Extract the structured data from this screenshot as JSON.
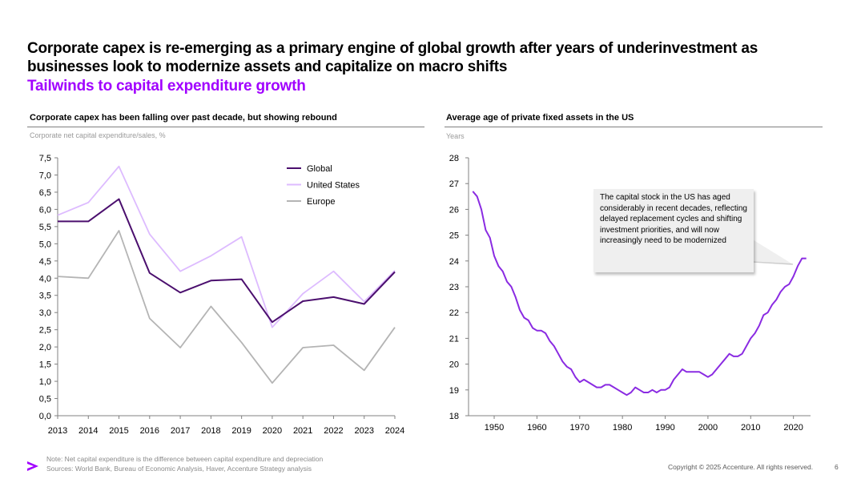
{
  "header": {
    "title": "Corporate capex is re-emerging as a primary engine of global growth after years of underinvestment as businesses look to modernize assets and capitalize on macro shifts",
    "subtitle": "Tailwinds to capital expenditure growth"
  },
  "colors": {
    "accent": "#A100FF",
    "global": "#4B0F6E",
    "us": "#DDBBFF",
    "europe": "#B4B4B4",
    "age_line": "#8A2BE2"
  },
  "chart_data": [
    {
      "type": "line",
      "title": "Corporate capex has been falling over past decade, but showing rebound",
      "ylabel": "Corporate net capital expenditure/sales, %",
      "xlabel": "",
      "categories": [
        "2013",
        "2014",
        "2015",
        "2016",
        "2017",
        "2018",
        "2019",
        "2020",
        "2021",
        "2022",
        "2023",
        "2024"
      ],
      "series": [
        {
          "name": "Global",
          "values": [
            5.65,
            5.65,
            6.3,
            4.15,
            3.58,
            3.93,
            3.97,
            2.72,
            3.33,
            3.45,
            3.25,
            4.18
          ]
        },
        {
          "name": "United States",
          "values": [
            5.83,
            6.2,
            7.25,
            5.28,
            4.2,
            4.65,
            5.2,
            2.57,
            3.55,
            4.2,
            3.32,
            4.22
          ]
        },
        {
          "name": "Europe",
          "values": [
            4.05,
            4.0,
            5.38,
            2.83,
            1.98,
            3.18,
            2.13,
            0.95,
            1.98,
            2.05,
            1.32,
            2.57
          ]
        }
      ],
      "ylim": [
        0,
        7.5
      ],
      "yticks": [
        "0,0",
        "0,5",
        "1,0",
        "1,5",
        "2,0",
        "2,5",
        "3,0",
        "3,5",
        "4,0",
        "4,5",
        "5,0",
        "5,5",
        "6,0",
        "6,5",
        "7,0",
        "7,5"
      ],
      "legend": "top-right"
    },
    {
      "type": "line",
      "title": "Average age of private fixed assets in the US",
      "ylabel": "Years",
      "xlabel": "",
      "xlim": [
        1944,
        2024
      ],
      "ylim": [
        18,
        28
      ],
      "xticks": [
        "1950",
        "1960",
        "1970",
        "1980",
        "1990",
        "2000",
        "2010",
        "2020"
      ],
      "yticks": [
        "18",
        "19",
        "20",
        "21",
        "22",
        "23",
        "24",
        "25",
        "26",
        "27",
        "28"
      ],
      "series": [
        {
          "name": "Average age",
          "x": [
            1945,
            1946,
            1947,
            1948,
            1949,
            1950,
            1951,
            1952,
            1953,
            1954,
            1955,
            1956,
            1957,
            1958,
            1959,
            1960,
            1961,
            1962,
            1963,
            1964,
            1965,
            1966,
            1967,
            1968,
            1969,
            1970,
            1971,
            1972,
            1973,
            1974,
            1975,
            1976,
            1977,
            1978,
            1979,
            1980,
            1981,
            1982,
            1983,
            1984,
            1985,
            1986,
            1987,
            1988,
            1989,
            1990,
            1991,
            1992,
            1993,
            1994,
            1995,
            1996,
            1997,
            1998,
            1999,
            2000,
            2001,
            2002,
            2003,
            2004,
            2005,
            2006,
            2007,
            2008,
            2009,
            2010,
            2011,
            2012,
            2013,
            2014,
            2015,
            2016,
            2017,
            2018,
            2019,
            2020,
            2021,
            2022,
            2023
          ],
          "y": [
            26.7,
            26.5,
            26.0,
            25.2,
            24.9,
            24.2,
            23.8,
            23.6,
            23.2,
            23.0,
            22.6,
            22.1,
            21.8,
            21.7,
            21.4,
            21.3,
            21.3,
            21.2,
            20.9,
            20.7,
            20.4,
            20.1,
            19.9,
            19.8,
            19.5,
            19.3,
            19.4,
            19.3,
            19.2,
            19.1,
            19.1,
            19.2,
            19.2,
            19.1,
            19.0,
            18.9,
            18.8,
            18.9,
            19.1,
            19.0,
            18.9,
            18.9,
            19.0,
            18.9,
            19.0,
            19.0,
            19.1,
            19.4,
            19.6,
            19.8,
            19.7,
            19.7,
            19.7,
            19.7,
            19.6,
            19.5,
            19.6,
            19.8,
            20.0,
            20.2,
            20.4,
            20.3,
            20.3,
            20.4,
            20.7,
            21.0,
            21.2,
            21.5,
            21.9,
            22.0,
            22.3,
            22.5,
            22.8,
            23.0,
            23.1,
            23.4,
            23.8,
            24.1,
            24.1
          ]
        }
      ],
      "annotation": "The capital stock in the US has aged considerably in recent decades, reflecting delayed replacement cycles and shifting investment priorities, and will now increasingly need to be modernized"
    }
  ],
  "footer": {
    "note": "Note: Net capital expenditure is the difference between capital expenditure and depreciation",
    "sources": "Sources: World Bank, Bureau of Economic Analysis, Haver, Accenture Strategy analysis",
    "copyright": "Copyright © 2025 Accenture. All rights reserved.",
    "page": "6"
  }
}
